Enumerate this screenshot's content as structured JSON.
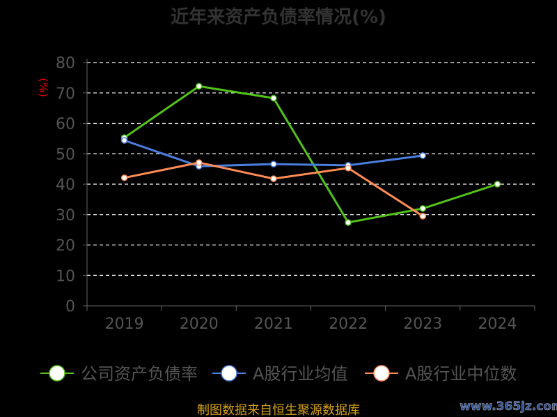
{
  "chart_data": {
    "type": "line",
    "title": "近年来资产负债率情况(%)",
    "ylabel": "(%)",
    "xlabel": "",
    "categories": [
      "2019",
      "2020",
      "2021",
      "2022",
      "2023",
      "2024"
    ],
    "ylim": [
      0,
      80
    ],
    "yticks": [
      "0",
      "10",
      "20",
      "30",
      "40",
      "50",
      "60",
      "70",
      "80"
    ],
    "grid": true,
    "legend_position": "bottom",
    "series": [
      {
        "name": "公司资产负债率",
        "color": "#52c41a",
        "values": [
          55.3,
          72.2,
          68.3,
          27.4,
          32.0,
          40.0
        ]
      },
      {
        "name": "A股行业均值",
        "color": "#4a7fe0",
        "values": [
          54.4,
          45.9,
          46.6,
          46.2,
          49.4,
          null
        ]
      },
      {
        "name": "A股行业中位数",
        "color": "#ff8c55",
        "values": [
          42.1,
          47.1,
          41.8,
          45.3,
          29.5,
          null
        ]
      }
    ]
  },
  "footer": {
    "source": "制图数据来自恒生聚源数据库",
    "watermark": "www.365jz.com"
  }
}
